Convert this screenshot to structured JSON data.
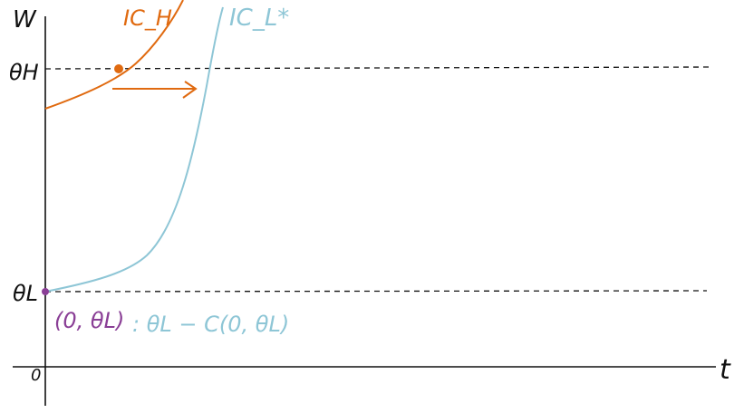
{
  "labels": {
    "y_axis": "W",
    "x_axis": "t",
    "origin": "0",
    "theta_h": "θH",
    "theta_l": "θL",
    "curve_h": "IC_H",
    "curve_l": "IC_L*",
    "point_label_purple": "(0, θL)",
    "point_label_blue": ": θL − C(0, θL)"
  },
  "colors": {
    "axis": "#111111",
    "dashed": "#111111",
    "orange": "#e06a10",
    "blue": "#8ec6d6",
    "purple": "#8a3f96"
  }
}
